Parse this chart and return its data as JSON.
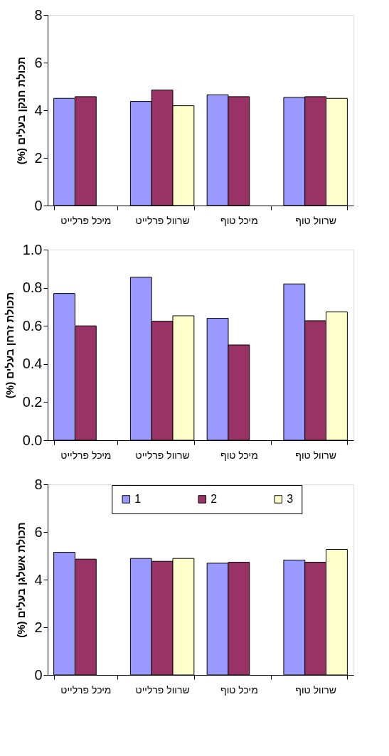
{
  "chart_data": [
    {
      "type": "bar",
      "ylabel": "תכולת חנקן בעלים  (%)",
      "categories": [
        "מיכל פרלייט",
        "שרוול פרלייט",
        "מיכל טוף",
        "שרוול טוף"
      ],
      "series": [
        {
          "color": "#9999ff",
          "values": [
            4.5,
            4.37,
            4.65,
            4.54
          ]
        },
        {
          "color": "#993366",
          "values": [
            4.57,
            4.85,
            4.57,
            4.57
          ]
        },
        {
          "color": "#ffffcc",
          "values": [
            null,
            4.19,
            null,
            4.5
          ]
        }
      ],
      "ylim": [
        0,
        8
      ],
      "yticks": [
        0,
        2,
        4,
        6,
        8
      ],
      "grid": false,
      "legend": false
    },
    {
      "type": "bar",
      "ylabel": "תכולת זרחן בעלים  (%)",
      "categories": [
        "מיכל פרלייט",
        "שרוול פרלייט",
        "מיכל טוף",
        "שרוול טוף"
      ],
      "series": [
        {
          "color": "#9999ff",
          "values": [
            0.77,
            0.855,
            0.64,
            0.82
          ]
        },
        {
          "color": "#993366",
          "values": [
            0.6,
            0.625,
            0.5,
            0.627
          ]
        },
        {
          "color": "#ffffcc",
          "values": [
            null,
            0.653,
            null,
            0.673
          ]
        }
      ],
      "ylim": [
        0,
        1
      ],
      "yticks": [
        {
          "value": 0,
          "label": "0.0"
        },
        0.2,
        0.4,
        0.6,
        0.8,
        {
          "value": 1,
          "label": "1.0"
        }
      ],
      "grid": false,
      "legend": false
    },
    {
      "type": "bar",
      "ylabel": "תכולת אשלגן בעלים  (%)",
      "categories": [
        "מיכל פרלייט",
        "שרוול פרלייט",
        "מיכל טוף",
        "שרוול טוף"
      ],
      "series": [
        {
          "name": "1",
          "color": "#9999ff",
          "values": [
            5.15,
            4.89,
            4.69,
            4.82
          ]
        },
        {
          "name": "2",
          "color": "#993366",
          "values": [
            4.86,
            4.77,
            4.73,
            4.73
          ]
        },
        {
          "name": "3",
          "color": "#ffffcc",
          "values": [
            null,
            4.89,
            null,
            5.27
          ]
        }
      ],
      "ylim": [
        0,
        8
      ],
      "yticks": [
        0,
        2,
        4,
        6,
        8
      ],
      "grid": false,
      "legend": "top"
    }
  ]
}
